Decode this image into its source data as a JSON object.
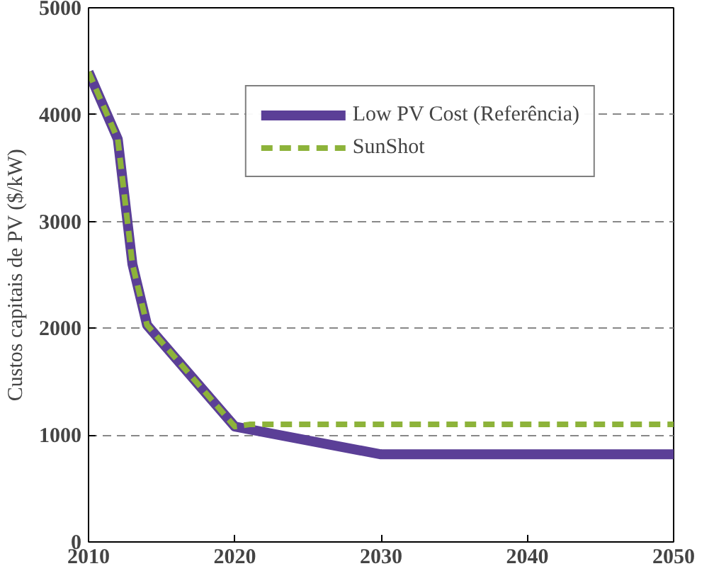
{
  "chart_data": {
    "type": "line",
    "ylabel": "Custos capitais de PV ($/kW)",
    "xlim": [
      2010,
      2050
    ],
    "ylim": [
      0,
      5000
    ],
    "xticks": [
      2010,
      2020,
      2030,
      2040,
      2050
    ],
    "yticks": [
      0,
      1000,
      2000,
      3000,
      4000,
      5000
    ],
    "grid": "y",
    "legend": "top right",
    "series": [
      {
        "name": "Low PV Cost (Referência)",
        "color": "#5b3f97",
        "line_style": "solid",
        "x": [
          2010,
          2012,
          2013,
          2014,
          2020,
          2030,
          2050
        ],
        "values": [
          4400,
          3770,
          2600,
          2030,
          1080,
          820,
          820
        ]
      },
      {
        "name": "SunShot",
        "color": "#8db33a",
        "line_style": "dashed",
        "x": [
          2010,
          2012,
          2013,
          2014,
          2020,
          2021,
          2050
        ],
        "values": [
          4400,
          3770,
          2600,
          2030,
          1080,
          1100,
          1100
        ]
      }
    ]
  }
}
